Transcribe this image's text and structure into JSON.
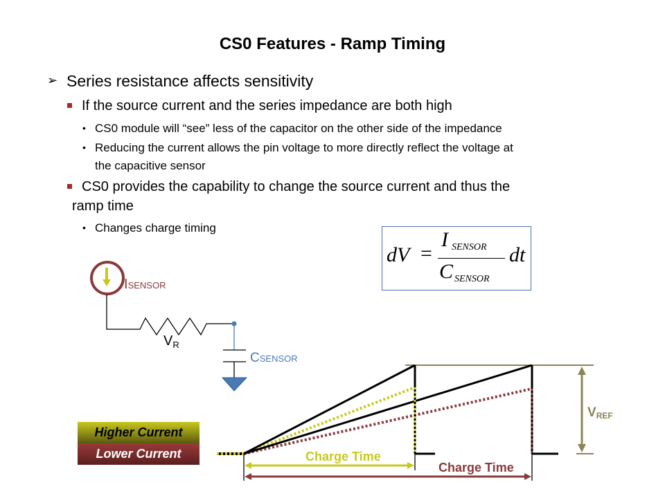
{
  "title": "CS0 Features - Ramp Timing",
  "bullets": {
    "b1": "Series resistance affects sensitivity",
    "b1_1": "If the source current and the series impedance are both high",
    "b1_1_1": "CS0 module  will “see” less of the capacitor on the other side of the impedance",
    "b1_1_2a": "Reducing the current allows the pin voltage to more directly reflect the voltage at",
    "b1_1_2b": "the capacitive sensor",
    "b1_2a": "CS0 provides the capability to change the source current  and thus the",
    "b1_2b": "ramp time",
    "b1_2_1": "Changes charge timing"
  },
  "equation": {
    "lhs": "dV",
    "eq": "=",
    "num_main": "I",
    "num_sub": "SENSOR",
    "den_main": "C",
    "den_sub": "SENSOR",
    "rhs": "dt"
  },
  "circuit": {
    "isensor_main": "I",
    "isensor_sub": "SENSOR",
    "vr_main": "V",
    "vr_sub": "R",
    "csensor_main": "C",
    "csensor_sub": "SENSOR"
  },
  "timing": {
    "higher_current": "Higher Current",
    "lower_current": "Lower Current",
    "charge_time_high": "Charge Time",
    "charge_time_low": "Charge Time",
    "vref_main": "V",
    "vref_sub": "REF"
  },
  "colors": {
    "yellow": "#c8c81e",
    "red": "#8b3a3a",
    "olive": "#8b8455",
    "blue": "#4a7ab5"
  }
}
